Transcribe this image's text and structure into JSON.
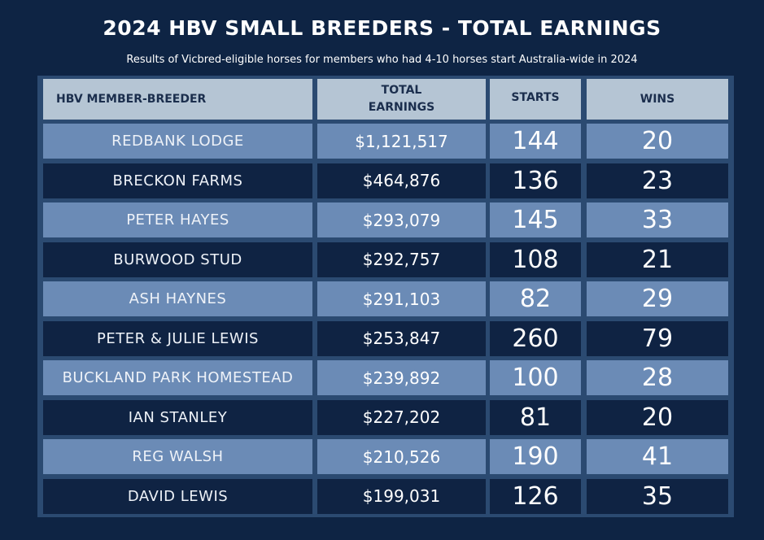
{
  "title": "2024 HBV SMALL BREEDERS - TOTAL EARNINGS",
  "subtitle": "Results of Vicbred-eligible horses for members who had 4-10 horses start Australia-wide in 2024",
  "colors": {
    "background": "#0e2444",
    "header_cell": "#b5c5d4",
    "light_row": "#6b8bb6",
    "dark_row": "#0f2343",
    "frame": "#2b4a71"
  },
  "chart_data": {
    "type": "table",
    "title": "2024 HBV SMALL BREEDERS - TOTAL EARNINGS",
    "subtitle": "Results of Vicbred-eligible horses for members who had 4-10 horses start Australia-wide in 2024",
    "columns": [
      "HBV MEMBER-BREEDER",
      "TOTAL EARNINGS",
      "STARTS",
      "WINS"
    ],
    "rows": [
      {
        "breeder": "REDBANK LODGE",
        "earnings": "$1,121,517",
        "starts": "144",
        "wins": "20"
      },
      {
        "breeder": "BRECKON FARMS",
        "earnings": "$464,876",
        "starts": "136",
        "wins": "23"
      },
      {
        "breeder": "PETER HAYES",
        "earnings": "$293,079",
        "starts": "145",
        "wins": "33"
      },
      {
        "breeder": "BURWOOD STUD",
        "earnings": "$292,757",
        "starts": "108",
        "wins": "21"
      },
      {
        "breeder": "ASH HAYNES",
        "earnings": "$291,103",
        "starts": "82",
        "wins": "29"
      },
      {
        "breeder": "PETER & JULIE LEWIS",
        "earnings": "$253,847",
        "starts": "260",
        "wins": "79"
      },
      {
        "breeder": "BUCKLAND PARK HOMESTEAD",
        "earnings": "$239,892",
        "starts": "100",
        "wins": "28"
      },
      {
        "breeder": "IAN STANLEY",
        "earnings": "$227,202",
        "starts": "81",
        "wins": "20"
      },
      {
        "breeder": "REG WALSH",
        "earnings": "$210,526",
        "starts": "190",
        "wins": "41"
      },
      {
        "breeder": "DAVID LEWIS",
        "earnings": "$199,031",
        "starts": "126",
        "wins": "35"
      }
    ]
  }
}
